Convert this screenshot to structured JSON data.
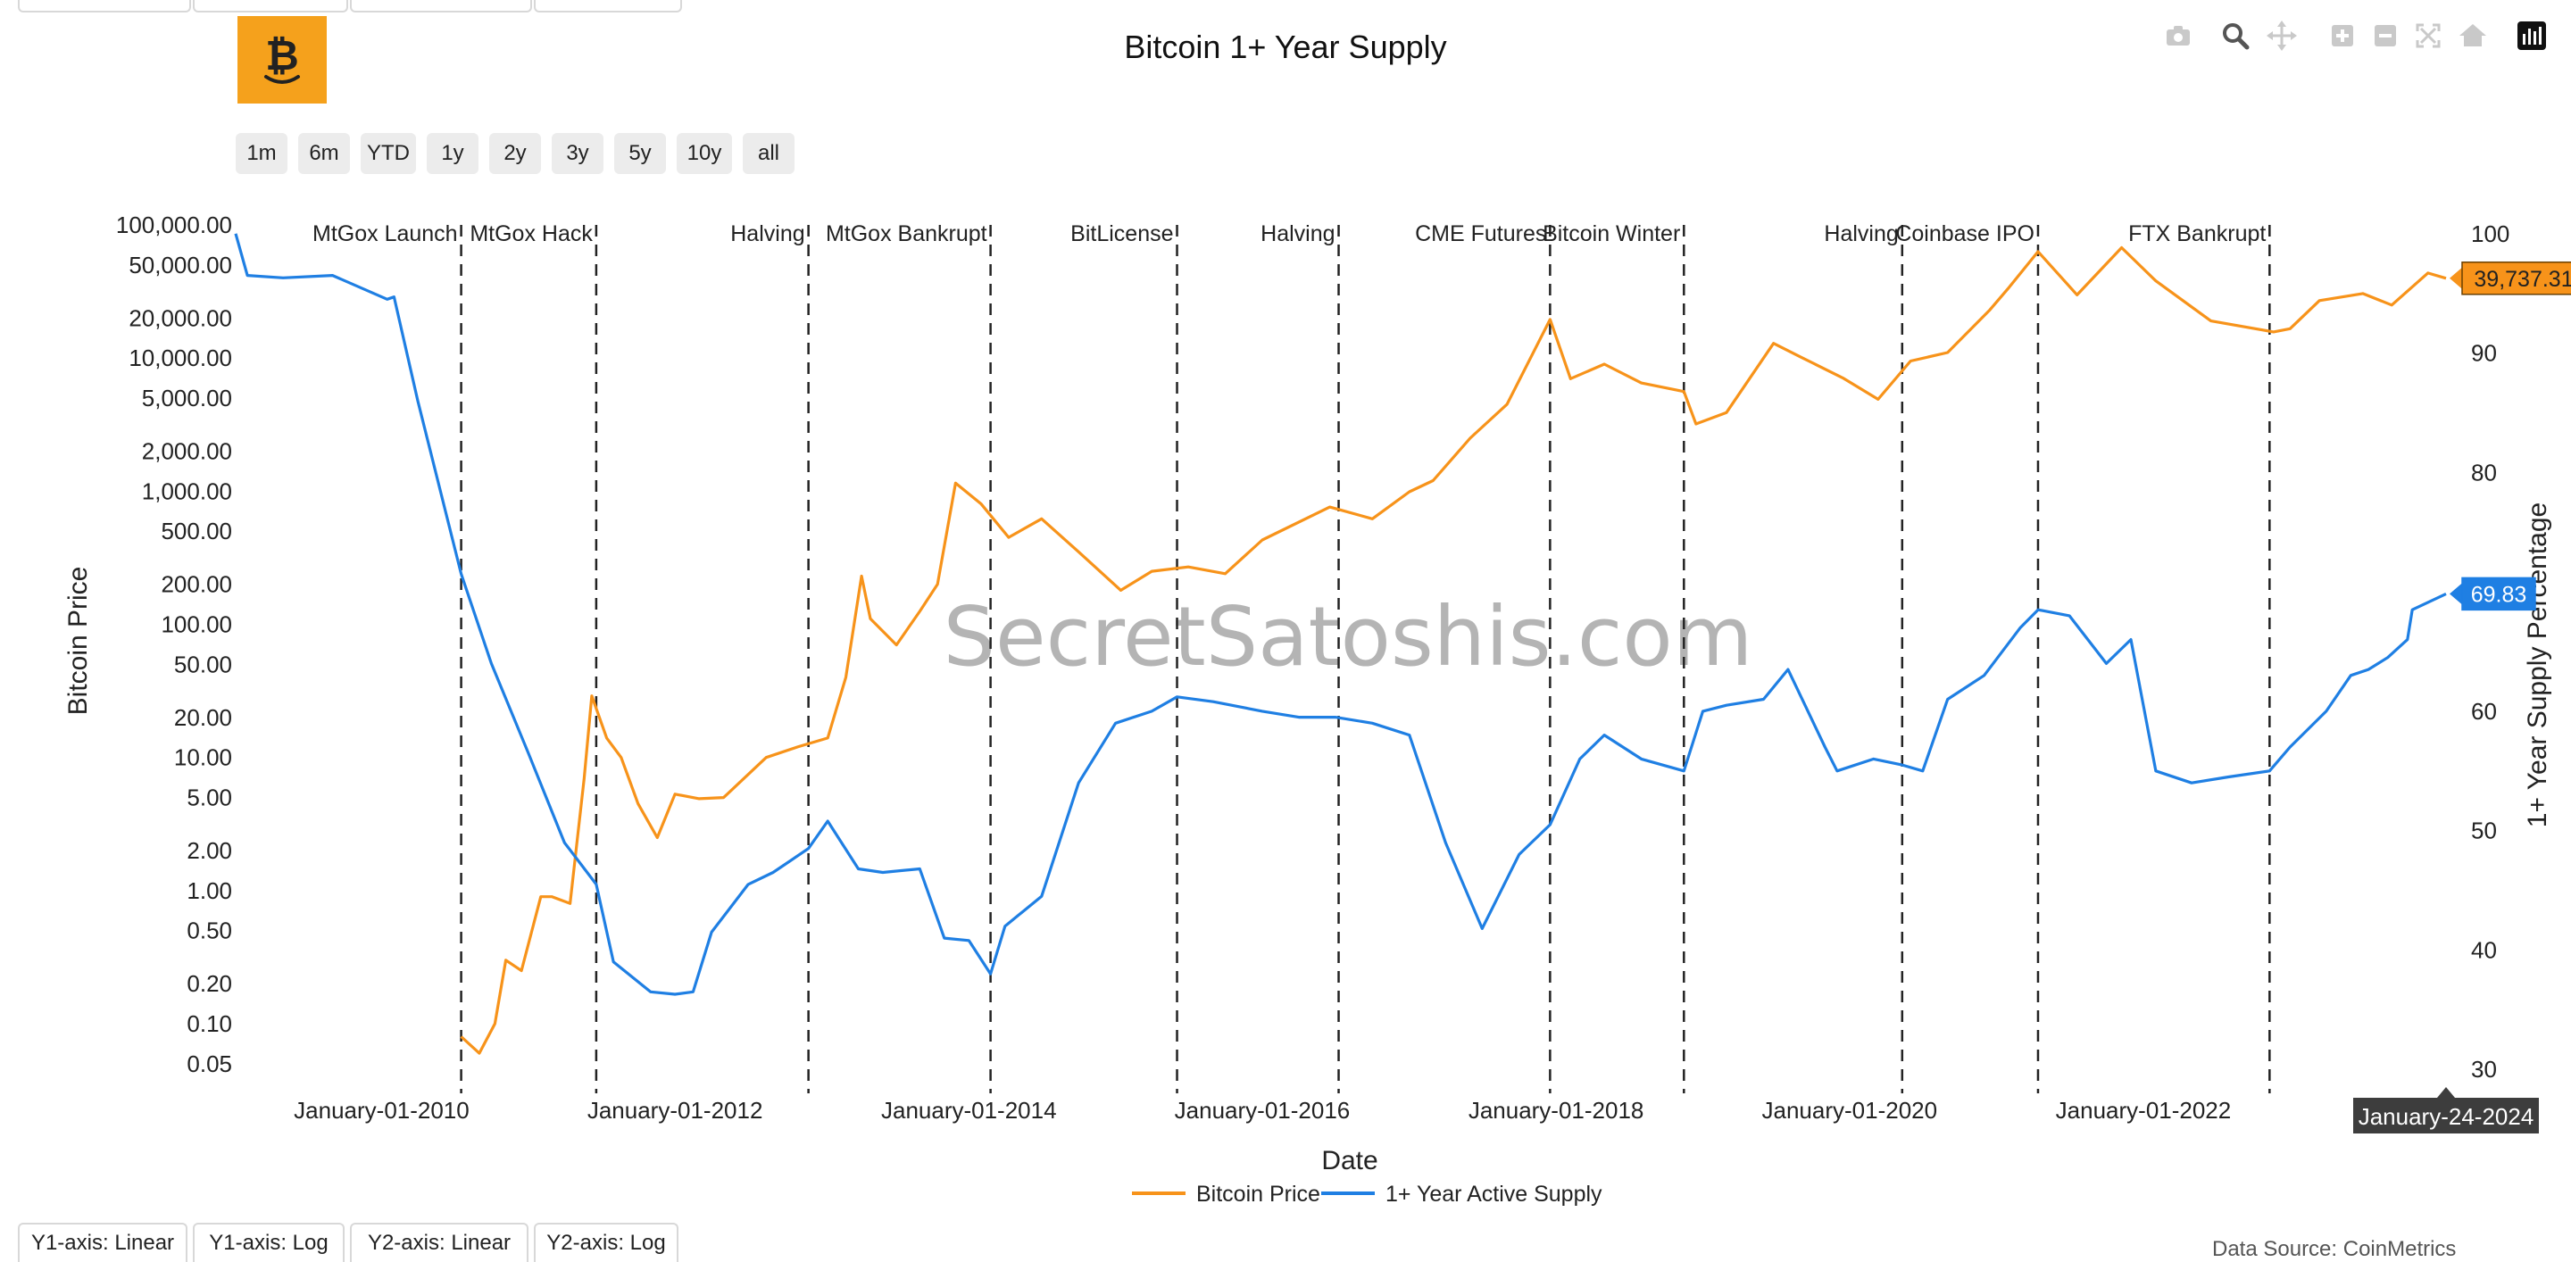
{
  "page": {
    "title": "Bitcoin 1+ Year Supply",
    "watermark": "SecretSatoshis.com",
    "source": "Data Source: CoinMetrics"
  },
  "range_buttons": [
    "1m",
    "6m",
    "YTD",
    "1y",
    "2y",
    "3y",
    "5y",
    "10y",
    "all"
  ],
  "axis_buttons": [
    "Y1-axis: Linear",
    "Y1-axis: Log",
    "Y2-axis: Linear",
    "Y2-axis: Log"
  ],
  "modebar": [
    "camera-icon",
    "zoom-icon",
    "pan-icon",
    "zoom-in-icon",
    "zoom-out-icon",
    "autoscale-icon",
    "reset-axes-icon",
    "plotly-logo-icon"
  ],
  "colors": {
    "price": "#f7931a",
    "supply": "#1f7fe3",
    "grid": "#e8e8e8",
    "event_line": "#222222"
  },
  "chart_data": {
    "type": "line",
    "title": "Bitcoin 1+ Year Supply",
    "xlabel": "Date",
    "ylabel": "Bitcoin Price",
    "y2label": "1+ Year Supply Percentage",
    "xlim": [
      "2009-01-03",
      "2024-01-24"
    ],
    "x_ticks": [
      "January-01-2010",
      "January-01-2012",
      "January-01-2014",
      "January-01-2016",
      "January-01-2018",
      "January-01-2020",
      "January-01-2022"
    ],
    "x_tick_dates": [
      "2010-01-01",
      "2012-01-01",
      "2014-01-01",
      "2016-01-01",
      "2018-01-01",
      "2020-01-01",
      "2022-01-01"
    ],
    "y_scale": "log",
    "ylim": [
      0.03,
      130000
    ],
    "y_ticks": [
      0.05,
      0.1,
      0.2,
      0.5,
      1,
      2,
      5,
      10,
      20,
      50,
      100,
      200,
      500,
      1000,
      2000,
      5000,
      10000,
      20000,
      50000,
      100000
    ],
    "y_tick_labels": [
      "0.05",
      "0.10",
      "0.20",
      "0.50",
      "1.00",
      "2.00",
      "5.00",
      "10.00",
      "20.00",
      "50.00",
      "100.00",
      "200.00",
      "500.00",
      "1,000.00",
      "2,000.00",
      "5,000.00",
      "10,000.00",
      "20,000.00",
      "50,000.00",
      "100,000.00"
    ],
    "y2_scale": "linear",
    "y2lim": [
      28,
      102
    ],
    "y2_ticks": [
      30,
      40,
      50,
      60,
      70,
      80,
      90,
      100
    ],
    "legend": {
      "placement": "bottom-center",
      "entries": [
        "Bitcoin Price",
        "1+ Year Active Supply"
      ]
    },
    "events": [
      {
        "label": "MtGox Launch",
        "date": "2010-07-18"
      },
      {
        "label": "MtGox Hack",
        "date": "2011-06-19"
      },
      {
        "label": "Halving",
        "date": "2012-11-28"
      },
      {
        "label": "MtGox Bankrupt",
        "date": "2014-02-24"
      },
      {
        "label": "BitLicense",
        "date": "2015-06-03"
      },
      {
        "label": "Halving",
        "date": "2016-07-09"
      },
      {
        "label": "CME Futures",
        "date": "2017-12-17"
      },
      {
        "label": "Bitcoin Winter",
        "date": "2018-11-15"
      },
      {
        "label": "Halving",
        "date": "2020-05-11"
      },
      {
        "label": "Coinbase IPO",
        "date": "2021-04-14"
      },
      {
        "label": "FTX Bankrupt",
        "date": "2022-11-11"
      }
    ],
    "series": [
      {
        "name": "Bitcoin Price",
        "axis": "y",
        "x": [
          "2010-07-18",
          "2010-09-01",
          "2010-10-10",
          "2010-11-06",
          "2010-12-15",
          "2011-02-01",
          "2011-03-01",
          "2011-04-15",
          "2011-05-20",
          "2011-06-08",
          "2011-07-15",
          "2011-08-20",
          "2011-10-01",
          "2011-11-18",
          "2012-01-01",
          "2012-03-01",
          "2012-05-01",
          "2012-08-15",
          "2012-11-01",
          "2013-01-15",
          "2013-03-01",
          "2013-04-09",
          "2013-05-01",
          "2013-07-05",
          "2013-09-01",
          "2013-10-15",
          "2013-11-29",
          "2014-02-01",
          "2014-04-10",
          "2014-07-01",
          "2014-10-01",
          "2015-01-14",
          "2015-04-01",
          "2015-07-01",
          "2015-10-01",
          "2016-01-01",
          "2016-06-17",
          "2016-10-01",
          "2017-01-01",
          "2017-03-01",
          "2017-06-01",
          "2017-09-01",
          "2017-12-17",
          "2018-02-06",
          "2018-05-01",
          "2018-08-01",
          "2018-11-15",
          "2018-12-15",
          "2019-03-01",
          "2019-06-26",
          "2019-09-01",
          "2019-12-15",
          "2020-03-12",
          "2020-06-01",
          "2020-09-01",
          "2020-12-15",
          "2021-02-01",
          "2021-04-14",
          "2021-07-20",
          "2021-11-08",
          "2022-02-01",
          "2022-06-18",
          "2022-11-21",
          "2023-01-01",
          "2023-03-15",
          "2023-07-01",
          "2023-09-11",
          "2023-12-10",
          "2024-01-24"
        ],
        "y": [
          0.08,
          0.06,
          0.1,
          0.3,
          0.25,
          0.9,
          0.9,
          0.8,
          7,
          29,
          14,
          10,
          4.5,
          2.5,
          5.3,
          4.9,
          5.0,
          10,
          12,
          14,
          40,
          230,
          110,
          70,
          125,
          200,
          1150,
          800,
          450,
          620,
          350,
          180,
          250,
          270,
          240,
          430,
          760,
          620,
          990,
          1200,
          2500,
          4500,
          19500,
          7000,
          9000,
          6500,
          5600,
          3200,
          3900,
          12900,
          10200,
          7100,
          4900,
          9500,
          11000,
          23000,
          34000,
          63000,
          29800,
          67500,
          38000,
          19000,
          15700,
          16600,
          27000,
          30500,
          25000,
          43500,
          39737
        ]
      },
      {
        "name": "1+ Year Active Supply",
        "axis": "y2",
        "x": [
          "2009-01-03",
          "2009-02-01",
          "2009-05-01",
          "2009-09-01",
          "2010-01-15",
          "2010-02-01",
          "2010-04-01",
          "2010-07-18",
          "2010-10-01",
          "2011-01-01",
          "2011-04-01",
          "2011-06-19",
          "2011-08-01",
          "2011-11-01",
          "2012-01-01",
          "2012-02-15",
          "2012-04-01",
          "2012-07-01",
          "2012-09-01",
          "2012-11-28",
          "2013-01-15",
          "2013-04-01",
          "2013-06-01",
          "2013-09-01",
          "2013-11-01",
          "2014-01-01",
          "2014-02-24",
          "2014-04-01",
          "2014-07-01",
          "2014-10-01",
          "2015-01-01",
          "2015-04-01",
          "2015-06-03",
          "2015-09-01",
          "2016-01-01",
          "2016-04-01",
          "2016-07-01",
          "2016-10-01",
          "2017-01-01",
          "2017-04-01",
          "2017-07-01",
          "2017-10-01",
          "2017-12-17",
          "2018-03-01",
          "2018-05-01",
          "2018-08-01",
          "2018-11-15",
          "2019-01-01",
          "2019-03-01",
          "2019-06-01",
          "2019-08-01",
          "2019-11-01",
          "2019-12-01",
          "2020-03-01",
          "2020-05-11",
          "2020-07-01",
          "2020-09-01",
          "2020-12-01",
          "2021-03-01",
          "2021-04-14",
          "2021-07-01",
          "2021-10-01",
          "2021-12-01",
          "2022-02-01",
          "2022-05-01",
          "2022-08-01",
          "2022-11-11",
          "2023-01-01",
          "2023-04-01",
          "2023-06-01",
          "2023-07-15",
          "2023-09-01",
          "2023-10-20",
          "2023-11-01",
          "2024-01-24"
        ],
        "y": [
          100,
          96.5,
          96.3,
          96.5,
          94.5,
          94.7,
          86,
          71.5,
          64,
          56.5,
          49,
          45.5,
          39,
          36.5,
          36.3,
          36.5,
          41.5,
          45.5,
          46.5,
          48.5,
          50.8,
          46.8,
          46.5,
          46.8,
          41,
          40.8,
          38,
          42,
          44.5,
          54,
          59,
          60,
          61.2,
          60.8,
          60,
          59.5,
          59.5,
          59.0,
          58,
          49,
          41.8,
          48,
          50.5,
          56,
          58,
          56,
          55,
          60,
          60.5,
          61,
          63.5,
          57.0,
          55,
          56,
          55.5,
          55,
          61,
          63,
          67,
          68.5,
          68,
          64,
          66,
          55,
          54,
          54.5,
          55,
          57,
          60,
          63,
          63.5,
          64.5,
          66,
          68.5,
          69.83
        ]
      }
    ],
    "annotations": [
      {
        "series": "Bitcoin Price",
        "label": "39,737.31",
        "value": 39737.31
      },
      {
        "series": "1+ Year Active Supply",
        "label": "69.83",
        "value": 69.83
      },
      {
        "axis": "x",
        "label": "January-24-2024",
        "date": "2024-01-24"
      }
    ]
  }
}
